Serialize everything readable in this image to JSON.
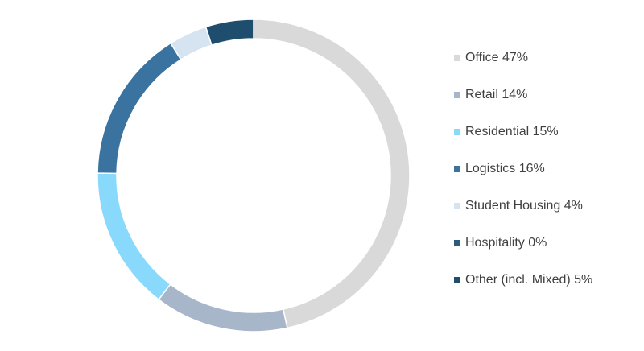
{
  "chart_data": {
    "type": "donut",
    "categories": [
      "Office",
      "Retail",
      "Residential",
      "Logistics",
      "Student Housing",
      "Hospitality",
      "Other (incl. Mixed)"
    ],
    "values": [
      47,
      14,
      15,
      16,
      4,
      0,
      5
    ],
    "value_labels": [
      "47%",
      "14%",
      "15%",
      "16%",
      "4%",
      "0%",
      "5%"
    ],
    "colors": [
      "#d9d9d9",
      "#a7b7c9",
      "#89d9fc",
      "#3a72a0",
      "#d5e4f0",
      "#2c5b7b",
      "#1f4d6d"
    ],
    "legend": "right"
  }
}
